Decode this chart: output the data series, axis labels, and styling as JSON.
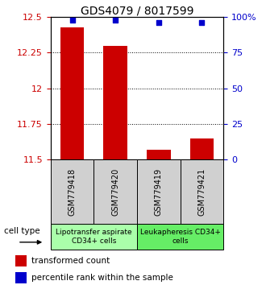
{
  "title": "GDS4079 / 8017599",
  "samples": [
    "GSM779418",
    "GSM779420",
    "GSM779419",
    "GSM779421"
  ],
  "transformed_counts": [
    12.43,
    12.3,
    11.57,
    11.65
  ],
  "percentile_ranks_pct": [
    98,
    98,
    96,
    96
  ],
  "ylim_left": [
    11.5,
    12.5
  ],
  "ylim_right": [
    0,
    100
  ],
  "yticks_left": [
    11.5,
    11.75,
    12.0,
    12.25,
    12.5
  ],
  "ytick_labels_left": [
    "11.5",
    "11.75",
    "12",
    "12.25",
    "12.5"
  ],
  "yticks_right": [
    0,
    25,
    50,
    75,
    100
  ],
  "ytick_labels_right": [
    "0",
    "25",
    "50",
    "75",
    "100%"
  ],
  "groups": [
    {
      "label": "Lipotransfer aspirate\nCD34+ cells",
      "color": "#aaffaa"
    },
    {
      "label": "Leukapheresis CD34+\ncells",
      "color": "#66ee66"
    }
  ],
  "bar_color": "#cc0000",
  "dot_color": "#0000cc",
  "bar_width": 0.55,
  "legend_labels": [
    "transformed count",
    "percentile rank within the sample"
  ],
  "legend_colors": [
    "#cc0000",
    "#0000cc"
  ],
  "cell_type_label": "cell type",
  "title_fontsize": 10,
  "tick_fontsize": 8,
  "sample_fontsize": 7,
  "group_fontsize": 6.5,
  "legend_fontsize": 7.5
}
